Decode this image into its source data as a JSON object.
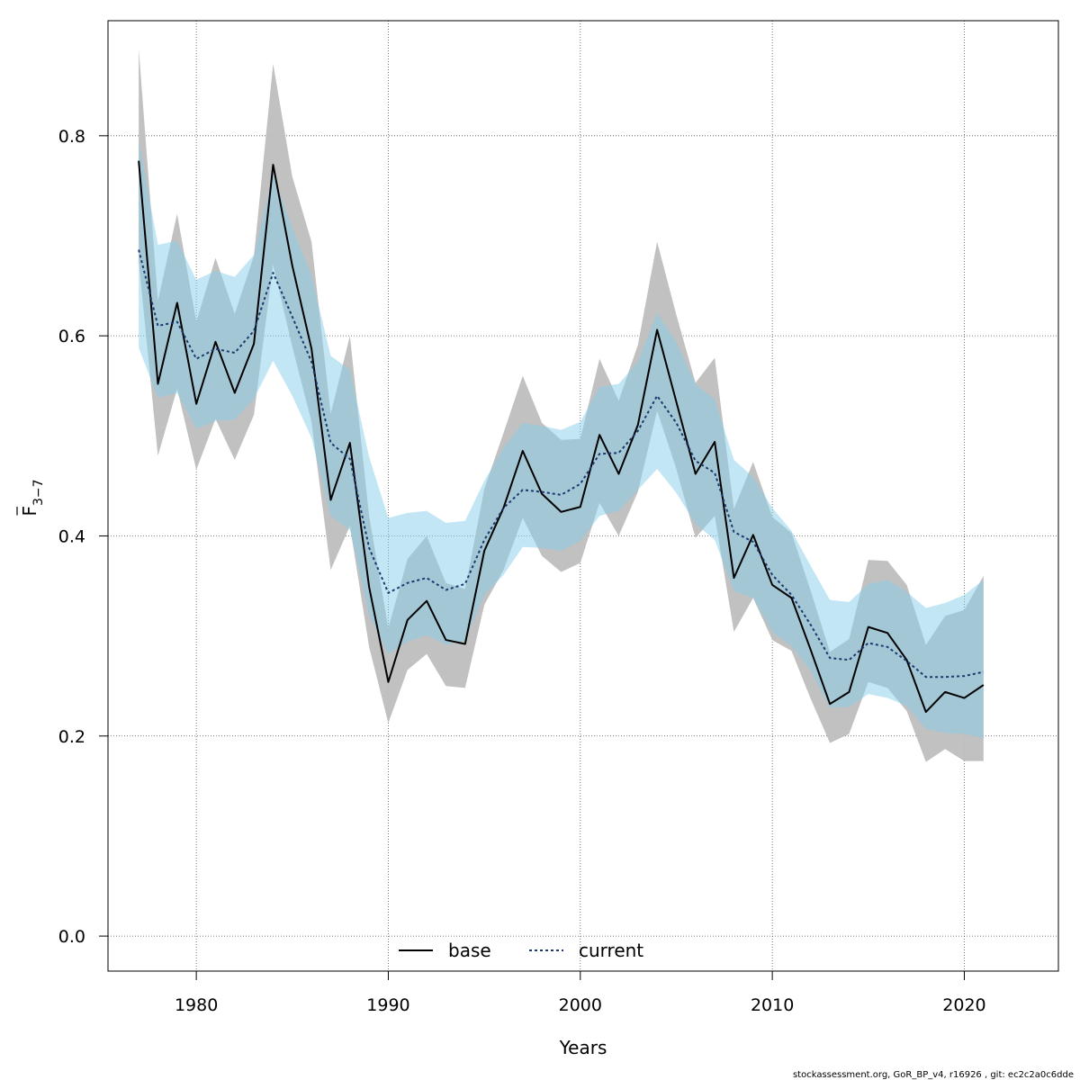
{
  "chart_data": {
    "type": "line",
    "xlabel": "Years",
    "ylabel_main": "F",
    "ylabel_sub": "3−7",
    "xlim": [
      1975.4,
      2024.9
    ],
    "ylim": [
      -0.035,
      0.915
    ],
    "x_ticks": [
      1980,
      1990,
      2000,
      2010,
      2020
    ],
    "y_ticks": [
      0.0,
      0.2,
      0.4,
      0.6,
      0.8
    ],
    "y_tick_labels": [
      "0.0",
      "0.2",
      "0.4",
      "0.6",
      "0.8"
    ],
    "grid": true,
    "legend_position": "bottom",
    "x": [
      1977,
      1978,
      1979,
      1980,
      1981,
      1982,
      1983,
      1984,
      1985,
      1986,
      1987,
      1988,
      1989,
      1990,
      1991,
      1992,
      1993,
      1994,
      1995,
      1996,
      1997,
      1998,
      1999,
      2000,
      2001,
      2002,
      2003,
      2004,
      2005,
      2006,
      2007,
      2008,
      2009,
      2010,
      2011,
      2012,
      2013,
      2014,
      2015,
      2016,
      2017,
      2018,
      2019,
      2020,
      2021
    ],
    "series": [
      {
        "name": "base",
        "color": "#000000",
        "band_color": "#bebebe",
        "line_style": "solid",
        "values": [
          0.775,
          0.552,
          0.633,
          0.532,
          0.594,
          0.543,
          0.592,
          0.771,
          0.67,
          0.587,
          0.436,
          0.493,
          0.349,
          0.254,
          0.316,
          0.335,
          0.296,
          0.292,
          0.385,
          0.428,
          0.485,
          0.442,
          0.424,
          0.429,
          0.501,
          0.462,
          0.511,
          0.606,
          0.534,
          0.462,
          0.494,
          0.358,
          0.401,
          0.351,
          0.338,
          0.286,
          0.232,
          0.244,
          0.309,
          0.303,
          0.276,
          0.224,
          0.244,
          0.238,
          0.251
        ],
        "lower": [
          0.675,
          0.48,
          0.547,
          0.466,
          0.517,
          0.476,
          0.521,
          0.671,
          0.589,
          0.514,
          0.366,
          0.41,
          0.289,
          0.213,
          0.266,
          0.282,
          0.25,
          0.248,
          0.331,
          0.366,
          0.418,
          0.38,
          0.364,
          0.373,
          0.433,
          0.4,
          0.444,
          0.525,
          0.467,
          0.398,
          0.42,
          0.304,
          0.338,
          0.296,
          0.285,
          0.237,
          0.193,
          0.202,
          0.254,
          0.248,
          0.225,
          0.174,
          0.187,
          0.175,
          0.175
        ],
        "upper": [
          0.887,
          0.635,
          0.722,
          0.614,
          0.678,
          0.622,
          0.68,
          0.872,
          0.759,
          0.694,
          0.522,
          0.6,
          0.42,
          0.308,
          0.377,
          0.4,
          0.353,
          0.347,
          0.447,
          0.503,
          0.56,
          0.513,
          0.496,
          0.497,
          0.577,
          0.535,
          0.591,
          0.694,
          0.621,
          0.553,
          0.578,
          0.427,
          0.474,
          0.419,
          0.403,
          0.345,
          0.284,
          0.297,
          0.376,
          0.375,
          0.351,
          0.291,
          0.32,
          0.326,
          0.36
        ]
      },
      {
        "name": "current",
        "color": "#1a3a6e",
        "band_color": "#87ceeb",
        "line_style": "dotted",
        "values": [
          0.686,
          0.61,
          0.614,
          0.577,
          0.587,
          0.583,
          0.605,
          0.663,
          0.619,
          0.574,
          0.493,
          0.477,
          0.388,
          0.343,
          0.353,
          0.358,
          0.346,
          0.352,
          0.396,
          0.428,
          0.446,
          0.444,
          0.441,
          0.452,
          0.482,
          0.483,
          0.505,
          0.54,
          0.513,
          0.475,
          0.463,
          0.404,
          0.394,
          0.361,
          0.341,
          0.311,
          0.278,
          0.276,
          0.293,
          0.289,
          0.275,
          0.259,
          0.259,
          0.26,
          0.264
        ],
        "lower": [
          0.588,
          0.538,
          0.543,
          0.507,
          0.515,
          0.516,
          0.537,
          0.575,
          0.54,
          0.498,
          0.42,
          0.406,
          0.321,
          0.282,
          0.294,
          0.301,
          0.291,
          0.295,
          0.341,
          0.361,
          0.389,
          0.388,
          0.385,
          0.395,
          0.42,
          0.425,
          0.446,
          0.467,
          0.443,
          0.412,
          0.396,
          0.345,
          0.338,
          0.304,
          0.29,
          0.265,
          0.228,
          0.229,
          0.242,
          0.238,
          0.23,
          0.207,
          0.203,
          0.202,
          0.198
        ],
        "upper": [
          0.795,
          0.691,
          0.695,
          0.656,
          0.665,
          0.659,
          0.681,
          0.762,
          0.708,
          0.66,
          0.58,
          0.566,
          0.479,
          0.418,
          0.423,
          0.425,
          0.413,
          0.415,
          0.455,
          0.488,
          0.513,
          0.51,
          0.506,
          0.514,
          0.549,
          0.552,
          0.574,
          0.623,
          0.594,
          0.552,
          0.536,
          0.476,
          0.459,
          0.428,
          0.405,
          0.37,
          0.336,
          0.334,
          0.352,
          0.356,
          0.344,
          0.328,
          0.333,
          0.341,
          0.356
        ]
      }
    ]
  },
  "footer": "stockassessment.org, GoR_BP_v4, r16926 , git: ec2c2a0c6dde"
}
